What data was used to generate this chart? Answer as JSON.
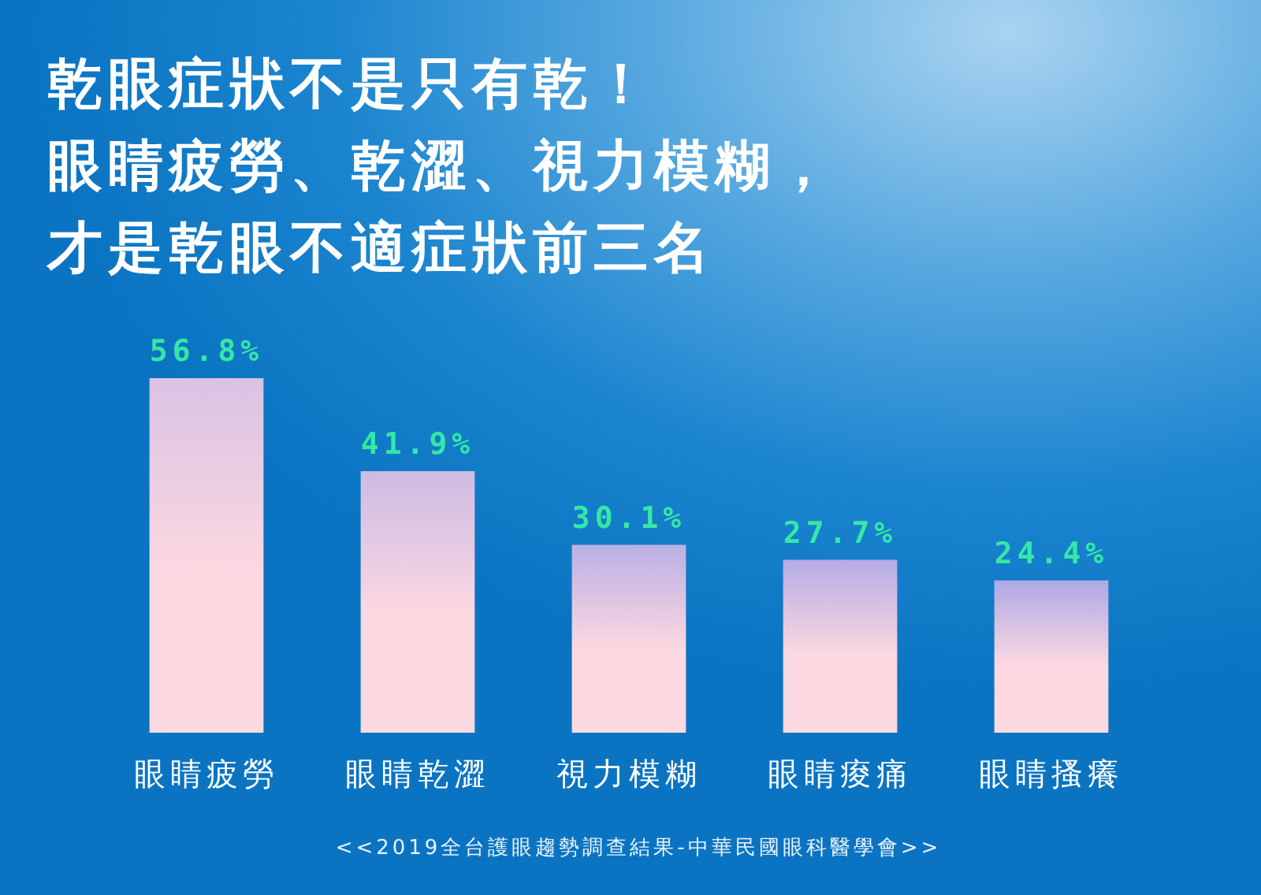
{
  "chart_data": {
    "type": "bar",
    "title": "乾眼症狀不是只有乾！眼睛疲勞、乾澀、視力模糊，才是乾眼不適症狀前三名",
    "categories": [
      "眼睛疲勞",
      "眼睛乾澀",
      "視力模糊",
      "眼睛痠痛",
      "眼睛搔癢"
    ],
    "values": [
      56.8,
      41.9,
      30.1,
      27.7,
      24.4
    ],
    "value_labels": [
      "56.8%",
      "41.9%",
      "30.1%",
      "27.7%",
      "24.4%"
    ],
    "color": "#fcd8e1",
    "annotations": [
      "<<2019全台護眼趨勢調查結果-中華民國眼科醫學會>>"
    ]
  }
}
